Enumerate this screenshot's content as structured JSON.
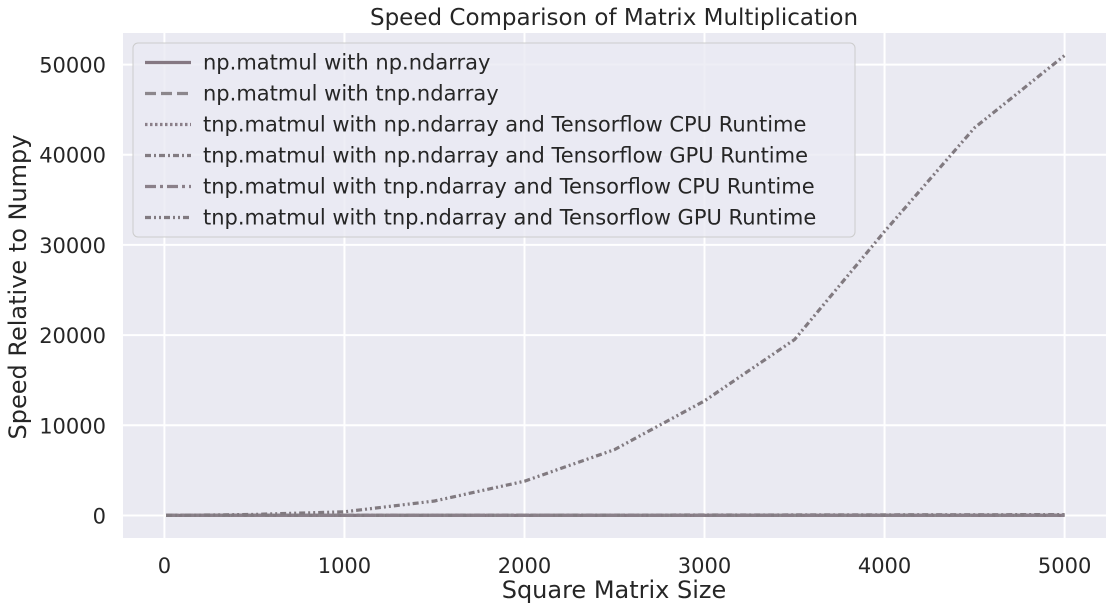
{
  "chart_data": {
    "type": "line",
    "title": "Speed Comparison of Matrix Multiplication",
    "xlabel": "Square Matrix Size",
    "ylabel": "Speed Relative to Numpy",
    "xlim": [
      -230,
      5230
    ],
    "ylim": [
      -2500,
      53500
    ],
    "xticks": [
      0,
      1000,
      2000,
      3000,
      4000,
      5000
    ],
    "yticks": [
      0,
      10000,
      20000,
      30000,
      40000,
      50000
    ],
    "grid": true,
    "legend_position": "top-left",
    "background": "#eaeaf2",
    "x": [
      10,
      100,
      500,
      1000,
      1500,
      2000,
      2500,
      3000,
      3500,
      4000,
      4500,
      5000
    ],
    "series": [
      {
        "name": "np.matmul with np.ndarray",
        "dash": "solid",
        "color": "#857882",
        "values": [
          1,
          1,
          1,
          1,
          1,
          1,
          1,
          1,
          1,
          1,
          1,
          1
        ]
      },
      {
        "name": "np.matmul with tnp.ndarray",
        "dash": "dashed",
        "color": "#8c878c",
        "values": [
          1,
          1,
          1,
          1,
          1,
          1,
          1,
          1,
          1,
          1,
          1,
          1
        ]
      },
      {
        "name": "tnp.matmul with np.ndarray and Tensorflow CPU Runtime",
        "dash": "dotted",
        "color": "#8a7f88",
        "values": [
          1,
          1,
          1,
          1,
          1,
          1,
          1,
          1,
          1,
          1,
          1,
          1
        ]
      },
      {
        "name": "tnp.matmul with np.ndarray and Tensorflow GPU Runtime",
        "dash": "dashdot-short",
        "color": "#837c82",
        "values": [
          1,
          2,
          5,
          10,
          20,
          30,
          40,
          50,
          60,
          70,
          80,
          90
        ]
      },
      {
        "name": "tnp.matmul with tnp.ndarray and Tensorflow CPU Runtime",
        "dash": "dashdot",
        "color": "#8a8089",
        "values": [
          1,
          1,
          1,
          1,
          1,
          1,
          1,
          1,
          1,
          1,
          1,
          1
        ]
      },
      {
        "name": "tnp.matmul with tnp.ndarray and Tensorflow GPU Runtime",
        "dash": "dashdotdot",
        "color": "#817a80",
        "values": [
          5,
          20,
          120,
          400,
          1600,
          3800,
          7300,
          12700,
          19500,
          31500,
          43000,
          51000
        ]
      }
    ]
  }
}
